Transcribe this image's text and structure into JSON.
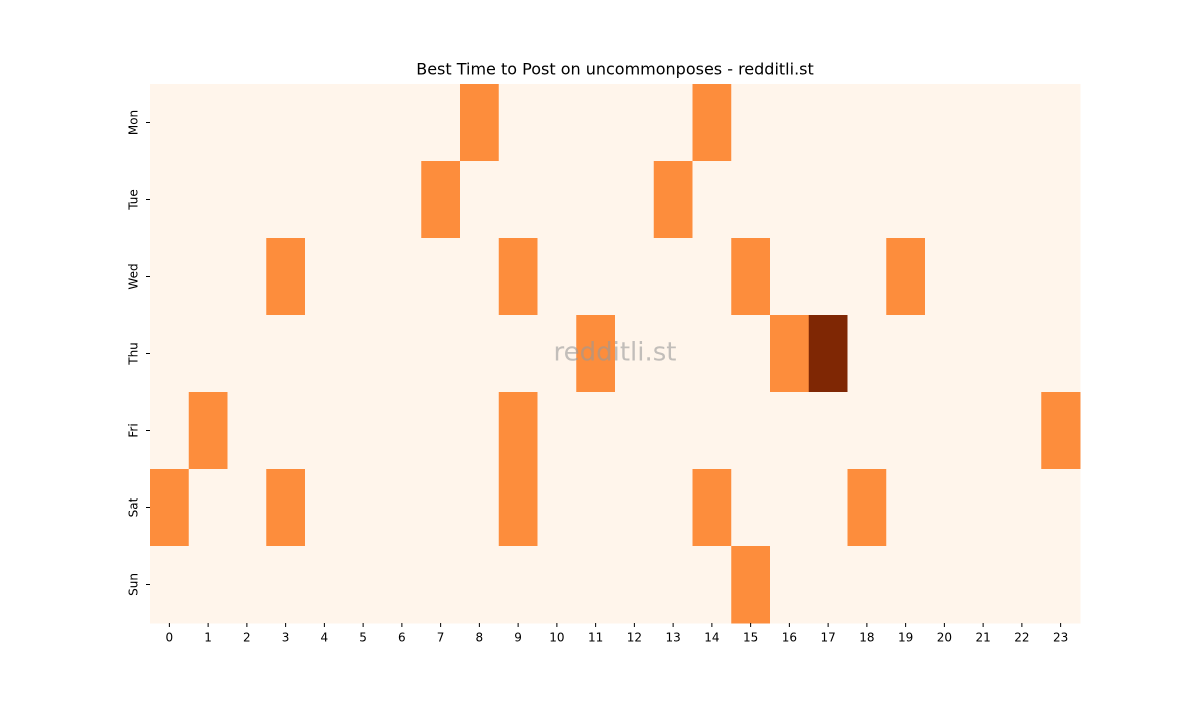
{
  "chart_data": {
    "type": "heatmap",
    "title": "Best Time to Post on uncommonposes - redditli.st",
    "watermark": "redditli.st",
    "x": [
      0,
      1,
      2,
      3,
      4,
      5,
      6,
      7,
      8,
      9,
      10,
      11,
      12,
      13,
      14,
      15,
      16,
      17,
      18,
      19,
      20,
      21,
      22,
      23
    ],
    "y": [
      "Mon",
      "Tue",
      "Wed",
      "Thu",
      "Fri",
      "Sat",
      "Sun"
    ],
    "values": [
      [
        0,
        0,
        0,
        0,
        0,
        0,
        0,
        0,
        1,
        0,
        0,
        0,
        0,
        0,
        1,
        0,
        0,
        0,
        0,
        0,
        0,
        0,
        0,
        0
      ],
      [
        0,
        0,
        0,
        0,
        0,
        0,
        0,
        1,
        0,
        0,
        0,
        0,
        0,
        1,
        0,
        0,
        0,
        0,
        0,
        0,
        0,
        0,
        0,
        0
      ],
      [
        0,
        0,
        0,
        1,
        0,
        0,
        0,
        0,
        0,
        1,
        0,
        0,
        0,
        0,
        0,
        1,
        0,
        0,
        0,
        1,
        0,
        0,
        0,
        0
      ],
      [
        0,
        0,
        0,
        0,
        0,
        0,
        0,
        0,
        0,
        0,
        0,
        1,
        0,
        0,
        0,
        0,
        1,
        2,
        0,
        0,
        0,
        0,
        0,
        0
      ],
      [
        0,
        1,
        0,
        0,
        0,
        0,
        0,
        0,
        0,
        1,
        0,
        0,
        0,
        0,
        0,
        0,
        0,
        0,
        0,
        0,
        0,
        0,
        0,
        1
      ],
      [
        1,
        0,
        0,
        1,
        0,
        0,
        0,
        0,
        0,
        1,
        0,
        0,
        0,
        0,
        1,
        0,
        0,
        0,
        1,
        0,
        0,
        0,
        0,
        0
      ],
      [
        0,
        0,
        0,
        0,
        0,
        0,
        0,
        0,
        0,
        0,
        0,
        0,
        0,
        0,
        0,
        1,
        0,
        0,
        0,
        0,
        0,
        0,
        0,
        0
      ]
    ],
    "zlim": [
      0,
      2
    ],
    "colorscale": [
      "#fff5eb",
      "#fd8d3c",
      "#7f2704"
    ]
  }
}
